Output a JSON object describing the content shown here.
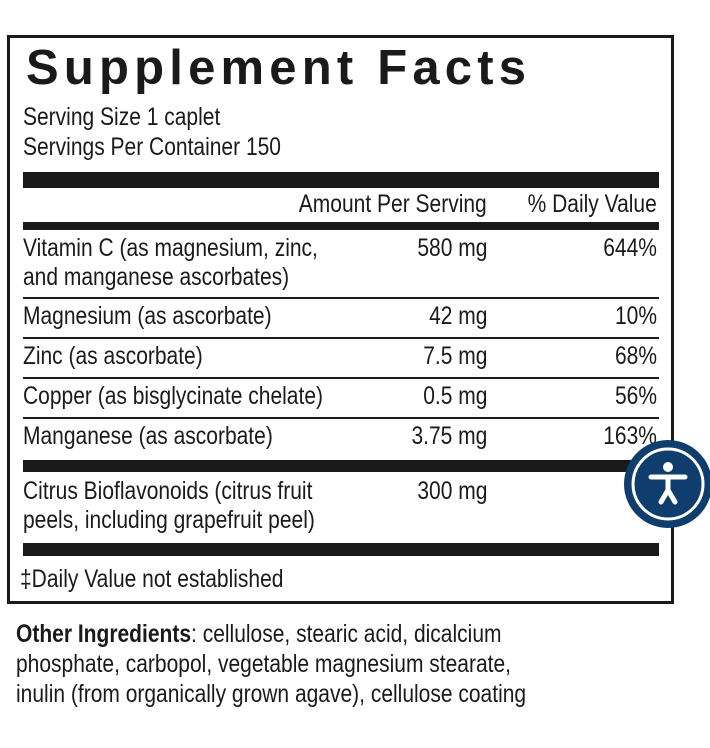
{
  "label": {
    "title": "Supplement Facts",
    "serving_size": "Serving Size 1 caplet",
    "servings_per_container": "Servings Per Container 150",
    "header": {
      "amount": "Amount Per Serving",
      "dv": "% Daily Value"
    },
    "rows": [
      {
        "name": [
          "Vitamin C (as magnesium, zinc,",
          "and manganese ascorbates)"
        ],
        "amount": "580 mg",
        "dv": "644%"
      },
      {
        "name": [
          "Magnesium (as ascorbate)"
        ],
        "amount": "42 mg",
        "dv": "10%"
      },
      {
        "name": [
          "Zinc (as ascorbate)"
        ],
        "amount": "7.5 mg",
        "dv": "68%"
      },
      {
        "name": [
          "Copper (as bisglycinate chelate)"
        ],
        "amount": "0.5 mg",
        "dv": "56%"
      },
      {
        "name": [
          "Manganese (as ascorbate)"
        ],
        "amount": "3.75 mg",
        "dv": "163%"
      },
      {
        "name": [
          "Citrus Bioflavonoids (citrus fruit",
          "peels, including grapefruit peel)"
        ],
        "amount": "300 mg",
        "dv": ""
      }
    ],
    "footnote": "‡Daily Value not established"
  },
  "other_ingredients": {
    "label": "Other Ingredients",
    "lines": [
      ": cellulose, stearic acid, dicalcium",
      "phosphate, carbopol, vegetable  magnesium stearate,",
      "inulin (from organically grown agave), cellulose coating"
    ]
  },
  "accessibility_button": {
    "icon": "accessibility-icon",
    "color": "#0f3e6e"
  }
}
